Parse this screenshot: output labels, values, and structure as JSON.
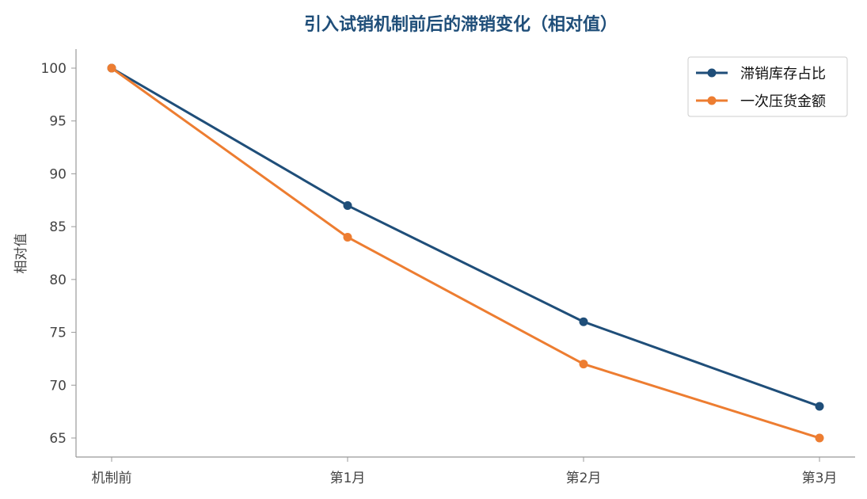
{
  "chart_data": {
    "type": "line",
    "title": "引入试销机制前后的滞销变化（相对值）",
    "xlabel": "",
    "ylabel": "相对值",
    "categories": [
      "机制前",
      "第1月",
      "第2月",
      "第3月"
    ],
    "yticks": [
      65,
      70,
      75,
      80,
      85,
      90,
      95,
      100
    ],
    "ylim": [
      63.2,
      101.8
    ],
    "grid": false,
    "legend_position": "top-right",
    "series": [
      {
        "name": "滞销库存占比",
        "values": [
          100,
          87,
          76,
          68
        ],
        "color": "#1f4e79"
      },
      {
        "name": "一次压货金额",
        "values": [
          100,
          84,
          72,
          65
        ],
        "color": "#ed7d31"
      }
    ]
  },
  "colors": {
    "title": "#1f4e79",
    "axis": "#999999",
    "tick_text": "#444444"
  }
}
